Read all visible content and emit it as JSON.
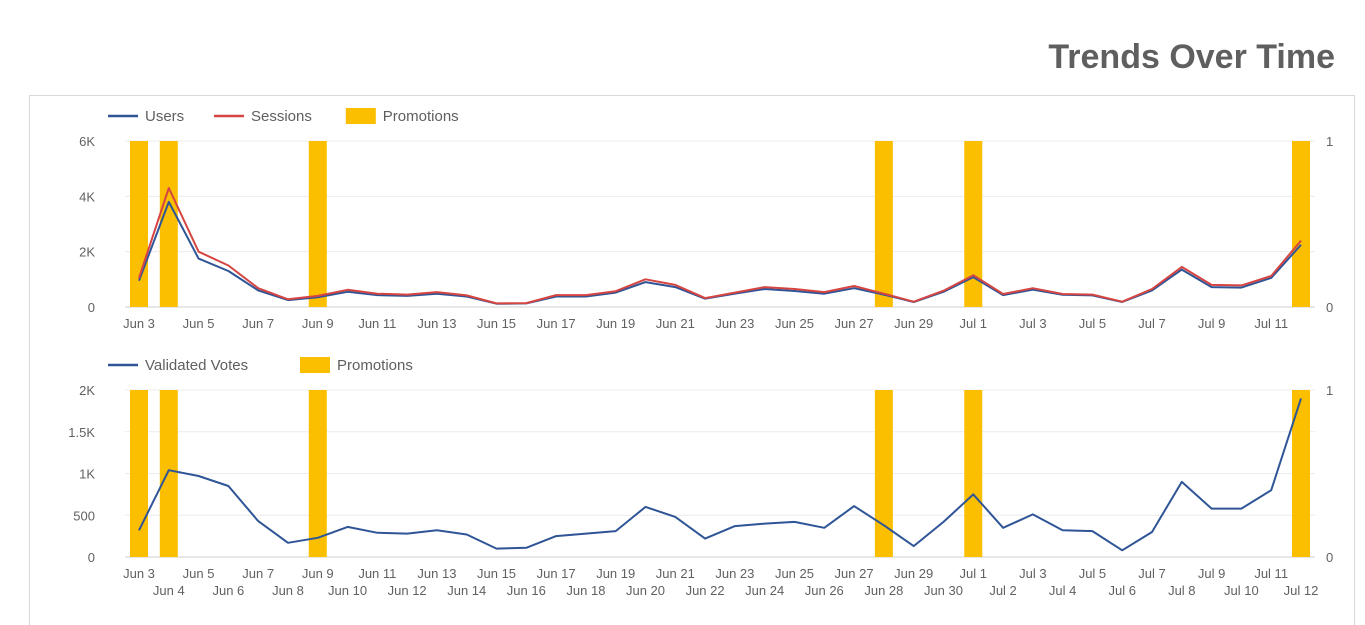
{
  "page": {
    "title": "Trends Over Time"
  },
  "colors": {
    "users": "#2f5597",
    "sessions": "#d64541",
    "promotions": "#fbbf00",
    "votes": "#2f5597",
    "grid": "#ececec",
    "axis": "#cfcfcf"
  },
  "chart_data": [
    {
      "type": "line",
      "x": [
        "Jun 3",
        "Jun 4",
        "Jun 5",
        "Jun 6",
        "Jun 7",
        "Jun 8",
        "Jun 9",
        "Jun 10",
        "Jun 11",
        "Jun 12",
        "Jun 13",
        "Jun 14",
        "Jun 15",
        "Jun 16",
        "Jun 17",
        "Jun 18",
        "Jun 19",
        "Jun 20",
        "Jun 21",
        "Jun 22",
        "Jun 23",
        "Jun 24",
        "Jun 25",
        "Jun 26",
        "Jun 27",
        "Jun 28",
        "Jun 29",
        "Jun 30",
        "Jul 1",
        "Jul 2",
        "Jul 3",
        "Jul 4",
        "Jul 5",
        "Jul 6",
        "Jul 7",
        "Jul 8",
        "Jul 9",
        "Jul 10",
        "Jul 11",
        "Jul 12"
      ],
      "series": [
        {
          "name": "Users",
          "values": [
            950,
            3800,
            1750,
            1300,
            600,
            250,
            350,
            550,
            430,
            400,
            480,
            380,
            120,
            130,
            380,
            380,
            520,
            900,
            720,
            300,
            480,
            650,
            580,
            480,
            680,
            450,
            180,
            550,
            1080,
            430,
            630,
            440,
            420,
            180,
            600,
            1350,
            720,
            700,
            1050,
            2250
          ]
        },
        {
          "name": "Sessions",
          "values": [
            1050,
            4300,
            2000,
            1500,
            680,
            280,
            400,
            620,
            480,
            450,
            540,
            420,
            130,
            140,
            430,
            430,
            570,
            1000,
            800,
            320,
            520,
            720,
            650,
            540,
            760,
            480,
            190,
            590,
            1150,
            470,
            680,
            470,
            450,
            190,
            650,
            1450,
            800,
            780,
            1120,
            2400
          ]
        },
        {
          "name": "Promotions",
          "type": "bar",
          "axis": "right",
          "values": [
            1,
            1,
            0,
            0,
            0,
            0,
            1,
            0,
            0,
            0,
            0,
            0,
            0,
            0,
            0,
            0,
            0,
            0,
            0,
            0,
            0,
            0,
            0,
            0,
            0,
            1,
            0,
            0,
            1,
            0,
            0,
            0,
            0,
            0,
            0,
            0,
            0,
            0,
            0,
            1
          ]
        }
      ],
      "legend": "top-left",
      "ylim": [
        0,
        6000
      ],
      "yticks": [
        "0",
        "2K",
        "4K",
        "6K"
      ],
      "y2lim": [
        0,
        1
      ],
      "y2ticks": [
        "0",
        "1"
      ],
      "grid": true
    },
    {
      "type": "line",
      "x": [
        "Jun 3",
        "Jun 4",
        "Jun 5",
        "Jun 6",
        "Jun 7",
        "Jun 8",
        "Jun 9",
        "Jun 10",
        "Jun 11",
        "Jun 12",
        "Jun 13",
        "Jun 14",
        "Jun 15",
        "Jun 16",
        "Jun 17",
        "Jun 18",
        "Jun 19",
        "Jun 20",
        "Jun 21",
        "Jun 22",
        "Jun 23",
        "Jun 24",
        "Jun 25",
        "Jun 26",
        "Jun 27",
        "Jun 28",
        "Jun 29",
        "Jun 30",
        "Jul 1",
        "Jul 2",
        "Jul 3",
        "Jul 4",
        "Jul 5",
        "Jul 6",
        "Jul 7",
        "Jul 8",
        "Jul 9",
        "Jul 10",
        "Jul 11",
        "Jul 12"
      ],
      "series": [
        {
          "name": "Validated Votes",
          "values": [
            320,
            1040,
            970,
            850,
            430,
            170,
            230,
            360,
            290,
            280,
            320,
            270,
            100,
            110,
            250,
            280,
            310,
            600,
            480,
            220,
            370,
            400,
            420,
            350,
            610,
            380,
            130,
            420,
            750,
            350,
            510,
            320,
            310,
            80,
            300,
            900,
            580,
            580,
            800,
            1900
          ]
        },
        {
          "name": "Promotions",
          "type": "bar",
          "axis": "right",
          "values": [
            1,
            1,
            0,
            0,
            0,
            0,
            1,
            0,
            0,
            0,
            0,
            0,
            0,
            0,
            0,
            0,
            0,
            0,
            0,
            0,
            0,
            0,
            0,
            0,
            0,
            1,
            0,
            0,
            1,
            0,
            0,
            0,
            0,
            0,
            0,
            0,
            0,
            0,
            0,
            1
          ]
        }
      ],
      "legend": "top-left",
      "ylim": [
        0,
        2000
      ],
      "yticks": [
        "0",
        "500",
        "1K",
        "1.5K",
        "2K"
      ],
      "y2lim": [
        0,
        1
      ],
      "y2ticks": [
        "0",
        "1"
      ],
      "grid": true
    }
  ]
}
